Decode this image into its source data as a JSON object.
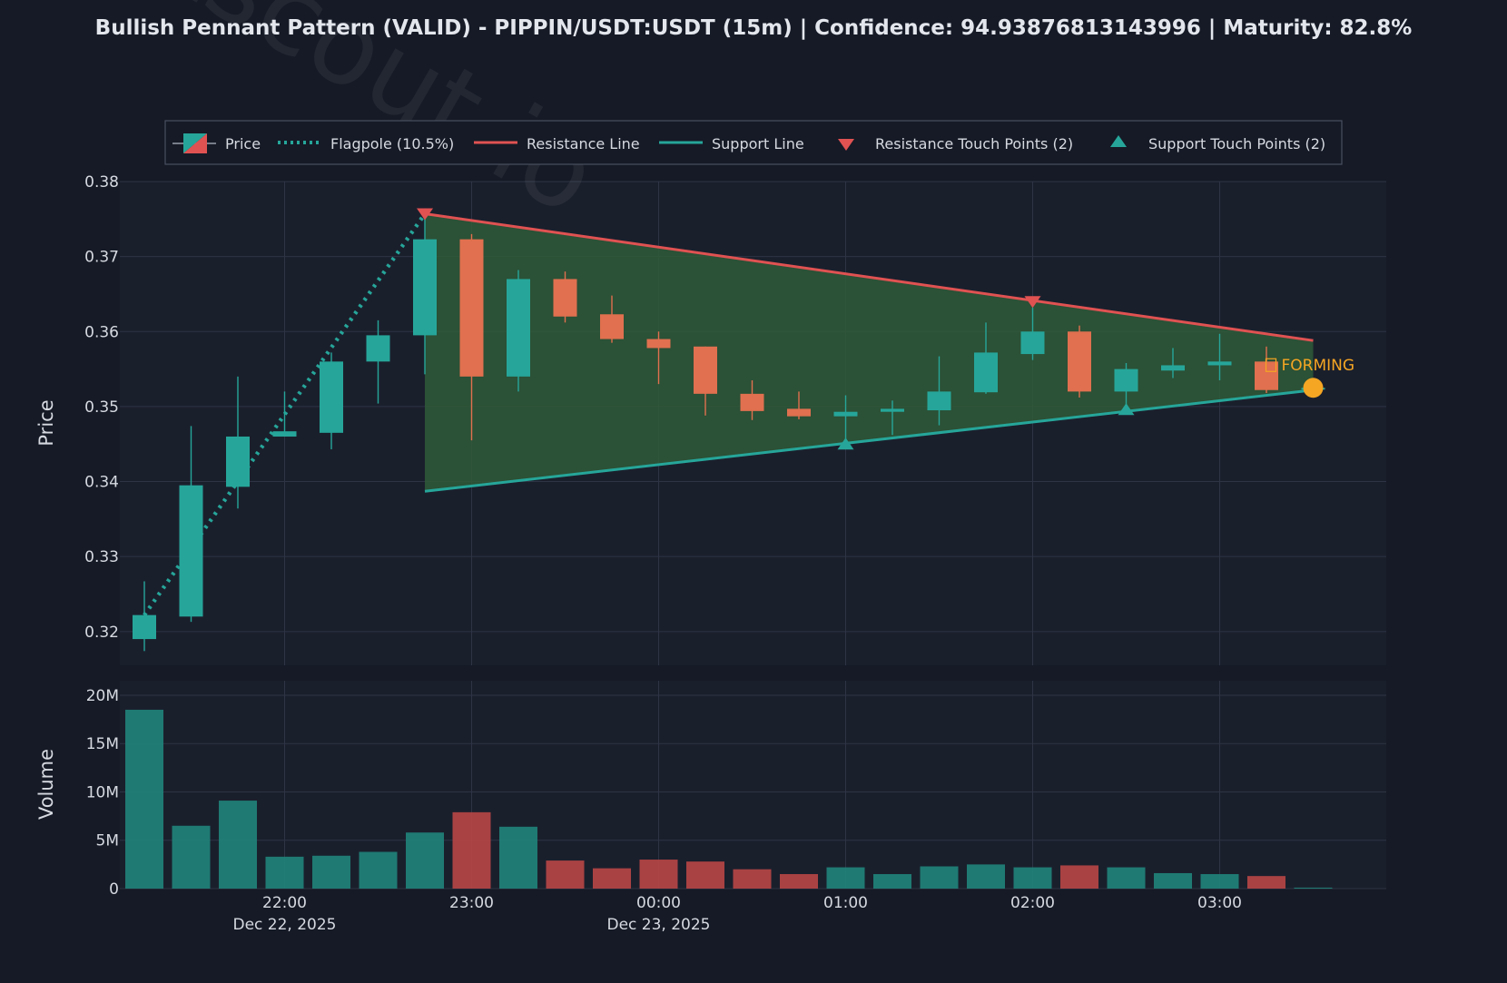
{
  "title": "Bullish Pennant Pattern (VALID) - PIPPIN/USDT:USDT (15m) | Confidence: 94.93876813143996 | Maturity: 82.8%",
  "watermark": "Chartscout.io",
  "forming_label": "FORMING",
  "legend": {
    "price": "Price",
    "flagpole": "Flagpole (10.5%)",
    "resistance": "Resistance Line",
    "support": "Support Line",
    "resistance_touch": "Resistance Touch Points (2)",
    "support_touch": "Support Touch Points (2)"
  },
  "colors": {
    "background": "#151a26",
    "plot_bg": "#1a1f2c",
    "grid": "#2e3444",
    "bull": "#26a69a",
    "bear": "#e0704f",
    "resistance": "#e05252",
    "support": "#26a69a",
    "pennant_fill": "#2f5a38",
    "forming": "#f5a623",
    "vol_bull": "#20827a",
    "vol_bear": "#b54545"
  },
  "chart_data": {
    "type": "candlestick",
    "interval_minutes": 15,
    "y_axis": {
      "label": "Price",
      "ticks": [
        "0.32",
        "0.33",
        "0.34",
        "0.35",
        "0.36",
        "0.37",
        "0.38"
      ],
      "range": [
        0.3155,
        0.38
      ]
    },
    "volume_axis": {
      "label": "Volume",
      "ticks": [
        "0",
        "5M",
        "10M",
        "15M",
        "20M"
      ],
      "range": [
        0,
        21500000
      ]
    },
    "x_ticks": [
      {
        "time": "2025-12-22 22:00",
        "label": "22:00",
        "date": "Dec 22, 2025"
      },
      {
        "time": "2025-12-22 23:00",
        "label": "23:00",
        "date": ""
      },
      {
        "time": "2025-12-23 00:00",
        "label": "00:00",
        "date": "Dec 23, 2025"
      },
      {
        "time": "2025-12-23 01:00",
        "label": "01:00",
        "date": ""
      },
      {
        "time": "2025-12-23 02:00",
        "label": "02:00",
        "date": ""
      },
      {
        "time": "2025-12-23 03:00",
        "label": "03:00",
        "date": ""
      }
    ],
    "candles": [
      {
        "time": "2025-12-22 21:15",
        "open": 0.319,
        "high": 0.3267,
        "low": 0.3174,
        "close": 0.3222,
        "volume": 18500000
      },
      {
        "time": "2025-12-22 21:30",
        "open": 0.322,
        "high": 0.3474,
        "low": 0.3213,
        "close": 0.3395,
        "volume": 6500000
      },
      {
        "time": "2025-12-22 21:45",
        "open": 0.3393,
        "high": 0.354,
        "low": 0.3364,
        "close": 0.346,
        "volume": 9100000
      },
      {
        "time": "2025-12-22 22:00",
        "open": 0.346,
        "high": 0.352,
        "low": 0.346,
        "close": 0.3467,
        "volume": 3300000
      },
      {
        "time": "2025-12-22 22:15",
        "open": 0.3465,
        "high": 0.3572,
        "low": 0.3443,
        "close": 0.356,
        "volume": 3400000
      },
      {
        "time": "2025-12-22 22:30",
        "open": 0.356,
        "high": 0.3615,
        "low": 0.3504,
        "close": 0.3595,
        "volume": 3800000
      },
      {
        "time": "2025-12-22 22:45",
        "open": 0.3595,
        "high": 0.3752,
        "low": 0.3543,
        "close": 0.3723,
        "volume": 5800000
      },
      {
        "time": "2025-12-22 23:00",
        "open": 0.3723,
        "high": 0.373,
        "low": 0.3455,
        "close": 0.354,
        "volume": 7900000
      },
      {
        "time": "2025-12-22 23:15",
        "open": 0.354,
        "high": 0.3682,
        "low": 0.352,
        "close": 0.367,
        "volume": 6400000
      },
      {
        "time": "2025-12-22 23:30",
        "open": 0.367,
        "high": 0.368,
        "low": 0.3612,
        "close": 0.362,
        "volume": 2900000
      },
      {
        "time": "2025-12-22 23:45",
        "open": 0.3623,
        "high": 0.3648,
        "low": 0.3585,
        "close": 0.359,
        "volume": 2100000
      },
      {
        "time": "2025-12-23 00:00",
        "open": 0.359,
        "high": 0.36,
        "low": 0.353,
        "close": 0.3578,
        "volume": 3000000
      },
      {
        "time": "2025-12-23 00:15",
        "open": 0.358,
        "high": 0.358,
        "low": 0.3488,
        "close": 0.3517,
        "volume": 2800000
      },
      {
        "time": "2025-12-23 00:30",
        "open": 0.3517,
        "high": 0.3535,
        "low": 0.3482,
        "close": 0.3494,
        "volume": 2000000
      },
      {
        "time": "2025-12-23 00:45",
        "open": 0.3497,
        "high": 0.352,
        "low": 0.3483,
        "close": 0.3487,
        "volume": 1500000
      },
      {
        "time": "2025-12-23 01:00",
        "open": 0.3487,
        "high": 0.3515,
        "low": 0.3452,
        "close": 0.3493,
        "volume": 2200000
      },
      {
        "time": "2025-12-23 01:15",
        "open": 0.3493,
        "high": 0.3508,
        "low": 0.3462,
        "close": 0.3497,
        "volume": 1500000
      },
      {
        "time": "2025-12-23 01:30",
        "open": 0.3495,
        "high": 0.3567,
        "low": 0.3475,
        "close": 0.352,
        "volume": 2300000
      },
      {
        "time": "2025-12-23 01:45",
        "open": 0.3519,
        "high": 0.3612,
        "low": 0.3517,
        "close": 0.3572,
        "volume": 2500000
      },
      {
        "time": "2025-12-23 02:00",
        "open": 0.357,
        "high": 0.3632,
        "low": 0.3562,
        "close": 0.36,
        "volume": 2200000
      },
      {
        "time": "2025-12-23 02:15",
        "open": 0.36,
        "high": 0.3608,
        "low": 0.3512,
        "close": 0.352,
        "volume": 2400000
      },
      {
        "time": "2025-12-23 02:30",
        "open": 0.352,
        "high": 0.3558,
        "low": 0.3495,
        "close": 0.355,
        "volume": 2200000
      },
      {
        "time": "2025-12-23 02:45",
        "open": 0.3548,
        "high": 0.3578,
        "low": 0.3538,
        "close": 0.3555,
        "volume": 1600000
      },
      {
        "time": "2025-12-23 03:00",
        "open": 0.3555,
        "high": 0.3597,
        "low": 0.3535,
        "close": 0.356,
        "volume": 1500000
      },
      {
        "time": "2025-12-23 03:15",
        "open": 0.356,
        "high": 0.358,
        "low": 0.3518,
        "close": 0.3522,
        "volume": 1300000
      },
      {
        "time": "2025-12-23 03:30",
        "open": 0.3525,
        "high": 0.3525,
        "low": 0.3525,
        "close": 0.3525,
        "volume": 100000
      }
    ],
    "flagpole": {
      "start": {
        "time": "2025-12-22 21:15",
        "price": 0.3222
      },
      "end": {
        "time": "2025-12-22 22:45",
        "price": 0.3757
      }
    },
    "resistance_line": {
      "start": {
        "time": "2025-12-22 22:45",
        "price": 0.3757
      },
      "end": {
        "time": "2025-12-23 03:30",
        "price": 0.3588
      }
    },
    "support_line": {
      "start": {
        "time": "2025-12-22 22:45",
        "price": 0.3387
      },
      "end": {
        "time": "2025-12-23 03:30",
        "price": 0.3522
      }
    },
    "resistance_touch_points": [
      {
        "time": "2025-12-22 22:45",
        "price": 0.3757
      },
      {
        "time": "2025-12-23 02:00",
        "price": 0.364
      }
    ],
    "support_touch_points": [
      {
        "time": "2025-12-23 01:00",
        "price": 0.345
      },
      {
        "time": "2025-12-23 02:30",
        "price": 0.3496
      }
    ],
    "forming_point": {
      "time": "2025-12-23 03:30",
      "price": 0.3525
    },
    "legend_position": "top"
  }
}
